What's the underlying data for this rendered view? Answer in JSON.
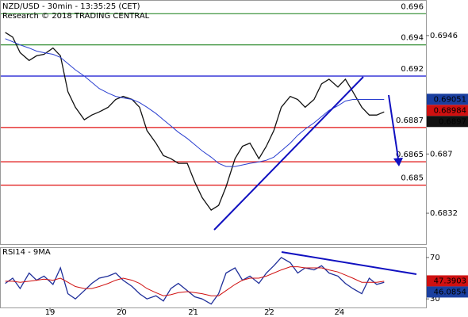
{
  "chart_data": [
    {
      "type": "line",
      "title": "NZD/USD - 30min - 13:35:25 (CET)",
      "subtitle": "Research © 2018 TRADING CENTRAL",
      "xlim": [
        0,
        285
      ],
      "ylim": [
        0.68122,
        0.69683
      ],
      "yticks": [
        0.6832,
        0.687,
        0.6946
      ],
      "x": [
        3,
        8,
        13,
        19,
        24,
        29,
        35,
        40,
        45,
        50,
        56,
        61,
        66,
        72,
        77,
        82,
        88,
        93,
        98,
        104,
        109,
        114,
        119,
        125,
        130,
        135,
        141,
        146,
        151,
        157,
        162,
        167,
        173,
        178,
        183,
        188,
        194,
        199,
        204,
        210,
        215,
        220,
        226,
        231,
        236,
        242,
        247,
        252,
        257
      ],
      "series": [
        {
          "color": "#111111",
          "values": [
            0.6948,
            0.6945,
            0.6935,
            0.693,
            0.6933,
            0.6934,
            0.6938,
            0.6933,
            0.691,
            0.69,
            0.6892,
            0.6895,
            0.6897,
            0.69,
            0.6905,
            0.6907,
            0.6905,
            0.69,
            0.6885,
            0.6877,
            0.6869,
            0.6867,
            0.6864,
            0.6864,
            0.6852,
            0.6842,
            0.6834,
            0.6837,
            0.6849,
            0.6867,
            0.6875,
            0.6877,
            0.6867,
            0.6875,
            0.6885,
            0.69,
            0.6907,
            0.6905,
            0.69,
            0.6905,
            0.6915,
            0.6918,
            0.6913,
            0.6918,
            0.691,
            0.69,
            0.6895,
            0.6895,
            0.6897
          ]
        },
        {
          "color": "#2a3fd0",
          "values": [
            0.6944,
            0.6942,
            0.694,
            0.6938,
            0.6936,
            0.6935,
            0.6934,
            0.6932,
            0.6928,
            0.6924,
            0.692,
            0.6916,
            0.6912,
            0.6909,
            0.6907,
            0.6906,
            0.6905,
            0.6903,
            0.69,
            0.6896,
            0.6892,
            0.6888,
            0.6884,
            0.688,
            0.6876,
            0.6872,
            0.6868,
            0.6864,
            0.6862,
            0.6862,
            0.6863,
            0.6864,
            0.6865,
            0.6866,
            0.6868,
            0.6872,
            0.6877,
            0.6882,
            0.6886,
            0.689,
            0.6894,
            0.6898,
            0.6901,
            0.6904,
            0.6905,
            0.6905,
            0.6905,
            0.6905,
            0.6905
          ]
        }
      ],
      "levels": [
        {
          "value": 0.696,
          "color": "#2e8b2e"
        },
        {
          "value": 0.694,
          "color": "#2e8b2e"
        },
        {
          "value": 0.692,
          "color": "#1010d0"
        },
        {
          "value": 0.6887,
          "color": "#e01010"
        },
        {
          "value": 0.6865,
          "color": "#e01010"
        },
        {
          "value": 0.685,
          "color": "#e01010"
        }
      ],
      "price_tags": [
        {
          "value": 0.69051,
          "color": "#1a3fa0"
        },
        {
          "value": 0.68984,
          "color": "#d01010"
        },
        {
          "value": 0.6897,
          "color": "#111111"
        }
      ]
    },
    {
      "type": "line",
      "title": "RSI14 - 9MA",
      "xlim": [
        0,
        285
      ],
      "ylim": [
        21.7,
        79.1
      ],
      "yticks": [
        30,
        70
      ],
      "xticks": [
        {
          "value": 33,
          "label": "19"
        },
        {
          "value": 81,
          "label": "20"
        },
        {
          "value": 129,
          "label": "21"
        },
        {
          "value": 180,
          "label": "22"
        },
        {
          "value": 227,
          "label": "24"
        }
      ],
      "x": [
        3,
        8,
        13,
        19,
        24,
        29,
        35,
        40,
        45,
        50,
        56,
        61,
        66,
        72,
        77,
        82,
        88,
        93,
        98,
        104,
        109,
        114,
        119,
        125,
        130,
        135,
        141,
        146,
        151,
        157,
        162,
        167,
        173,
        178,
        183,
        188,
        194,
        199,
        204,
        210,
        215,
        220,
        226,
        231,
        236,
        242,
        247,
        252,
        257
      ],
      "series": [
        {
          "color": "#1f2f9a",
          "values": [
            45,
            50,
            40,
            55,
            48,
            52,
            44,
            60,
            35,
            30,
            38,
            45,
            50,
            52,
            55,
            48,
            42,
            35,
            30,
            33,
            28,
            40,
            45,
            38,
            32,
            30,
            25,
            35,
            55,
            60,
            48,
            52,
            45,
            55,
            62,
            70,
            65,
            55,
            60,
            58,
            62,
            55,
            52,
            45,
            40,
            35,
            50,
            44,
            46
          ]
        },
        {
          "color": "#d01010",
          "values": [
            47,
            47,
            46,
            47,
            48,
            49,
            48,
            50,
            46,
            42,
            40,
            40,
            42,
            45,
            48,
            50,
            48,
            45,
            40,
            36,
            33,
            34,
            36,
            37,
            36,
            35,
            33,
            33,
            38,
            44,
            48,
            50,
            50,
            52,
            55,
            58,
            61,
            61,
            60,
            60,
            60,
            58,
            56,
            53,
            50,
            46,
            46,
            46,
            47
          ]
        }
      ],
      "price_tags": [
        {
          "value": 47.3903,
          "color": "#d01010"
        },
        {
          "value": 46.0854,
          "color": "#1a3fa0"
        }
      ]
    }
  ]
}
